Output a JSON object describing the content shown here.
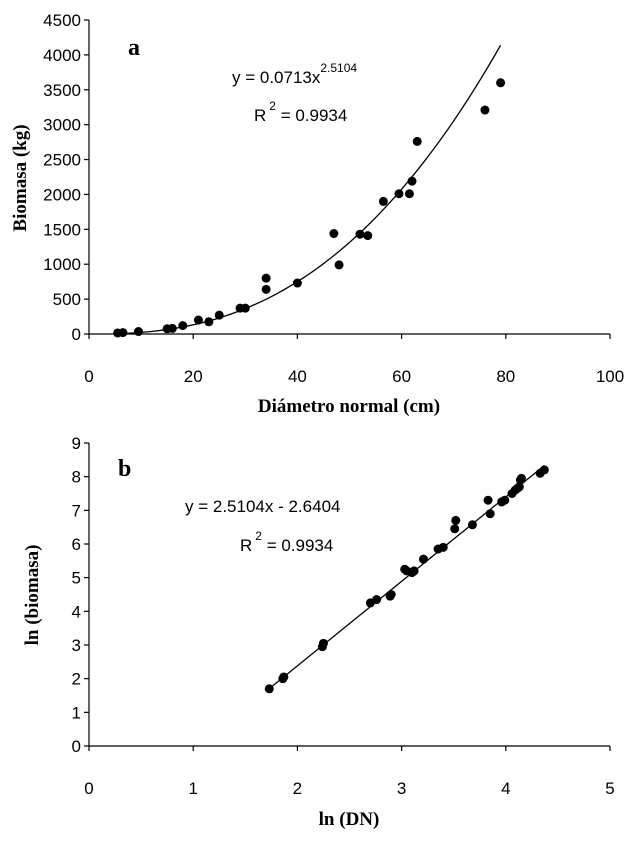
{
  "chart_data": [
    {
      "type": "scatter",
      "panel_label": "a",
      "xlabel": "Diámetro normal (cm)",
      "ylabel": "Biomasa (kg)",
      "xlim": [
        0,
        100
      ],
      "ylim": [
        0,
        4500
      ],
      "xticks": [
        0,
        20,
        40,
        60,
        80,
        100
      ],
      "yticks": [
        0,
        500,
        1000,
        1500,
        2000,
        2500,
        3000,
        3500,
        4000,
        4500
      ],
      "x_tick_labels": [
        "0",
        "20",
        "40",
        "60",
        "80",
        "100"
      ],
      "y_tick_labels": [
        "0",
        "500",
        "1000",
        "1500",
        "2000",
        "2500",
        "3000",
        "3500",
        "4000",
        "4500"
      ],
      "grid": false,
      "equation": {
        "prefix": "y = 0.0713x",
        "exponent": "2.5104",
        "r2_prefix": "R",
        "r2_exp": "2",
        "r2_suffix": " = 0.9934"
      },
      "fit": {
        "kind": "power",
        "a": 0.0713,
        "b": 2.5104,
        "x_range": [
          5,
          79
        ]
      },
      "points": [
        [
          5.5,
          15
        ],
        [
          6.5,
          20
        ],
        [
          9.5,
          35
        ],
        [
          15,
          75
        ],
        [
          16,
          80
        ],
        [
          18,
          120
        ],
        [
          21,
          200
        ],
        [
          23,
          175
        ],
        [
          25,
          270
        ],
        [
          29,
          370
        ],
        [
          30,
          370
        ],
        [
          34,
          640
        ],
        [
          34,
          800
        ],
        [
          40,
          730
        ],
        [
          47,
          1440
        ],
        [
          48,
          990
        ],
        [
          52,
          1430
        ],
        [
          53.5,
          1410
        ],
        [
          56.5,
          1900
        ],
        [
          59.5,
          2010
        ],
        [
          61.5,
          2010
        ],
        [
          62,
          2190
        ],
        [
          63,
          2760
        ],
        [
          76,
          3210
        ],
        [
          79,
          3600
        ]
      ]
    },
    {
      "type": "scatter",
      "panel_label": "b",
      "xlabel": "ln (DN)",
      "ylabel": "ln (biomasa)",
      "xlim": [
        0,
        5
      ],
      "ylim": [
        0,
        9
      ],
      "xticks": [
        0,
        1,
        2,
        3,
        4,
        5
      ],
      "yticks": [
        0,
        1,
        2,
        3,
        4,
        5,
        6,
        7,
        8,
        9
      ],
      "x_tick_labels": [
        "0",
        "1",
        "2",
        "3",
        "4",
        "5"
      ],
      "y_tick_labels": [
        "0",
        "1",
        "2",
        "3",
        "4",
        "5",
        "6",
        "7",
        "8",
        "9"
      ],
      "grid": false,
      "equation": {
        "prefix": "y = 2.5104x - 2.6404",
        "exponent": "",
        "r2_prefix": "R",
        "r2_exp": "2",
        "r2_suffix": " = 0.9934"
      },
      "fit": {
        "kind": "linear",
        "slope": 2.5104,
        "intercept": -2.6404,
        "x_range": [
          1.72,
          4.37
        ]
      },
      "points": [
        [
          1.73,
          1.7
        ],
        [
          1.86,
          2.0
        ],
        [
          1.87,
          2.05
        ],
        [
          2.24,
          2.95
        ],
        [
          2.25,
          3.05
        ],
        [
          2.7,
          4.25
        ],
        [
          2.76,
          4.35
        ],
        [
          2.89,
          4.45
        ],
        [
          2.9,
          4.5
        ],
        [
          3.03,
          5.25
        ],
        [
          3.05,
          5.2
        ],
        [
          3.1,
          5.15
        ],
        [
          3.12,
          5.2
        ],
        [
          3.21,
          5.55
        ],
        [
          3.35,
          5.85
        ],
        [
          3.4,
          5.9
        ],
        [
          3.51,
          6.45
        ],
        [
          3.52,
          6.7
        ],
        [
          3.68,
          6.57
        ],
        [
          3.83,
          7.3
        ],
        [
          3.85,
          6.9
        ],
        [
          3.96,
          7.25
        ],
        [
          3.99,
          7.3
        ],
        [
          4.06,
          7.5
        ],
        [
          4.09,
          7.6
        ],
        [
          4.11,
          7.65
        ],
        [
          4.13,
          7.7
        ],
        [
          4.14,
          7.9
        ],
        [
          4.15,
          7.95
        ],
        [
          4.33,
          8.1
        ],
        [
          4.37,
          8.2
        ]
      ]
    }
  ]
}
